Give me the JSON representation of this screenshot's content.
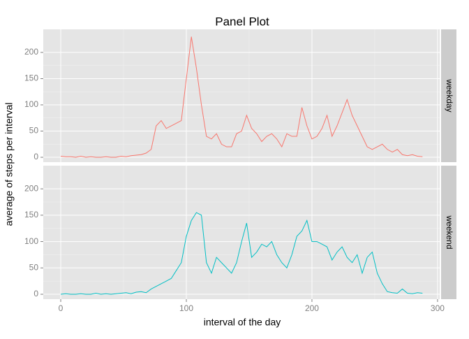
{
  "chart_data": {
    "type": "line",
    "title": "Panel Plot",
    "xlabel": "interval of the day",
    "ylabel": "average of steps per interval",
    "x": [
      0,
      4,
      8,
      12,
      16,
      20,
      24,
      28,
      32,
      36,
      40,
      44,
      48,
      52,
      56,
      60,
      64,
      68,
      72,
      76,
      80,
      84,
      88,
      92,
      96,
      100,
      104,
      108,
      112,
      116,
      120,
      124,
      128,
      132,
      136,
      140,
      144,
      148,
      152,
      156,
      160,
      164,
      168,
      172,
      176,
      180,
      184,
      188,
      192,
      196,
      200,
      204,
      208,
      212,
      216,
      220,
      224,
      228,
      232,
      236,
      240,
      244,
      248,
      252,
      256,
      260,
      264,
      268,
      272,
      276,
      280,
      284,
      288
    ],
    "series": [
      {
        "name": "weekday",
        "color": "#f8766d",
        "values": [
          2,
          1,
          1,
          0,
          2,
          0,
          1,
          0,
          0,
          1,
          0,
          0,
          2,
          1,
          3,
          4,
          5,
          8,
          15,
          60,
          70,
          55,
          60,
          65,
          70,
          150,
          230,
          170,
          100,
          40,
          35,
          45,
          25,
          20,
          20,
          45,
          50,
          80,
          55,
          45,
          30,
          40,
          45,
          35,
          20,
          45,
          40,
          40,
          95,
          60,
          35,
          40,
          55,
          80,
          40,
          60,
          85,
          110,
          80,
          60,
          40,
          20,
          15,
          20,
          25,
          15,
          10,
          15,
          5,
          3,
          5,
          2,
          1
        ]
      },
      {
        "name": "weekend",
        "color": "#00bfc4",
        "values": [
          0,
          1,
          0,
          0,
          1,
          0,
          0,
          2,
          0,
          1,
          0,
          1,
          2,
          3,
          1,
          4,
          5,
          3,
          10,
          15,
          20,
          25,
          30,
          45,
          60,
          110,
          140,
          155,
          150,
          60,
          40,
          70,
          60,
          50,
          40,
          60,
          100,
          135,
          70,
          80,
          95,
          90,
          100,
          75,
          60,
          50,
          75,
          110,
          120,
          140,
          100,
          100,
          95,
          90,
          65,
          80,
          90,
          70,
          60,
          75,
          40,
          70,
          80,
          40,
          20,
          5,
          3,
          2,
          10,
          2,
          1,
          3,
          2
        ]
      }
    ],
    "xlim": [
      -13.9,
      301.7
    ],
    "xticks": [
      0,
      100,
      200,
      300
    ],
    "ylim": [
      -9.3,
      244
    ],
    "yticks": [
      0,
      50,
      100,
      150,
      200
    ],
    "grid": true
  }
}
